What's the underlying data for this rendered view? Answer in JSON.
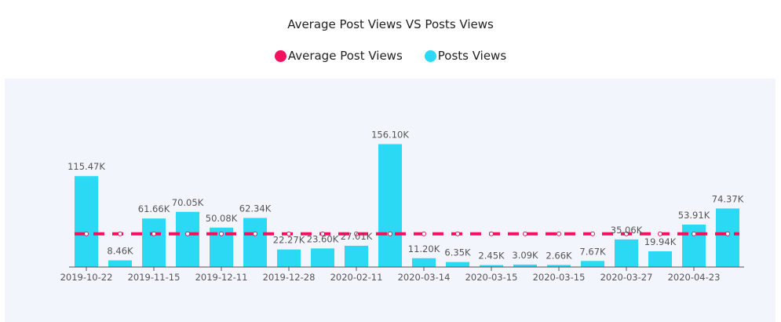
{
  "chart_data": {
    "type": "bar",
    "title": "Average Post Views VS Posts Views",
    "legend": [
      {
        "name": "Average Post Views",
        "color": "#f2115e"
      },
      {
        "name": "Posts Views",
        "color": "#2bd9f5"
      }
    ],
    "value_labels": [
      "115.47K",
      "8.46K",
      "61.66K",
      "70.05K",
      "50.08K",
      "62.34K",
      "22.27K",
      "23.60K",
      "27.01K",
      "156.10K",
      "11.20K",
      "6.35K",
      "2.45K",
      "3.09K",
      "2.66K",
      "7.67K",
      "35.06K",
      "19.94K",
      "53.91K",
      "74.37K"
    ],
    "values": [
      115.47,
      8.46,
      61.66,
      70.05,
      50.08,
      62.34,
      22.27,
      23.6,
      27.01,
      156.1,
      11.2,
      6.35,
      2.45,
      3.09,
      2.66,
      7.67,
      35.06,
      19.94,
      53.91,
      74.37
    ],
    "x_tick_labels": [
      "2019-10-22",
      "2019-11-15",
      "2019-12-11",
      "2019-12-28",
      "2020-02-11",
      "2020-03-14",
      "2020-03-15",
      "2020-03-15",
      "2020-03-27",
      "2020-04-23"
    ],
    "series": [
      {
        "name": "Posts Views",
        "type": "bar",
        "values": [
          115.47,
          8.46,
          61.66,
          70.05,
          50.08,
          62.34,
          22.27,
          23.6,
          27.01,
          156.1,
          11.2,
          6.35,
          2.45,
          3.09,
          2.66,
          7.67,
          35.06,
          19.94,
          53.91,
          74.37
        ]
      },
      {
        "name": "Average Post Views",
        "type": "line",
        "style": "dashed",
        "value": 42.2
      }
    ],
    "ylim": [
      0,
      180
    ],
    "xlabel": "",
    "ylabel": ""
  }
}
